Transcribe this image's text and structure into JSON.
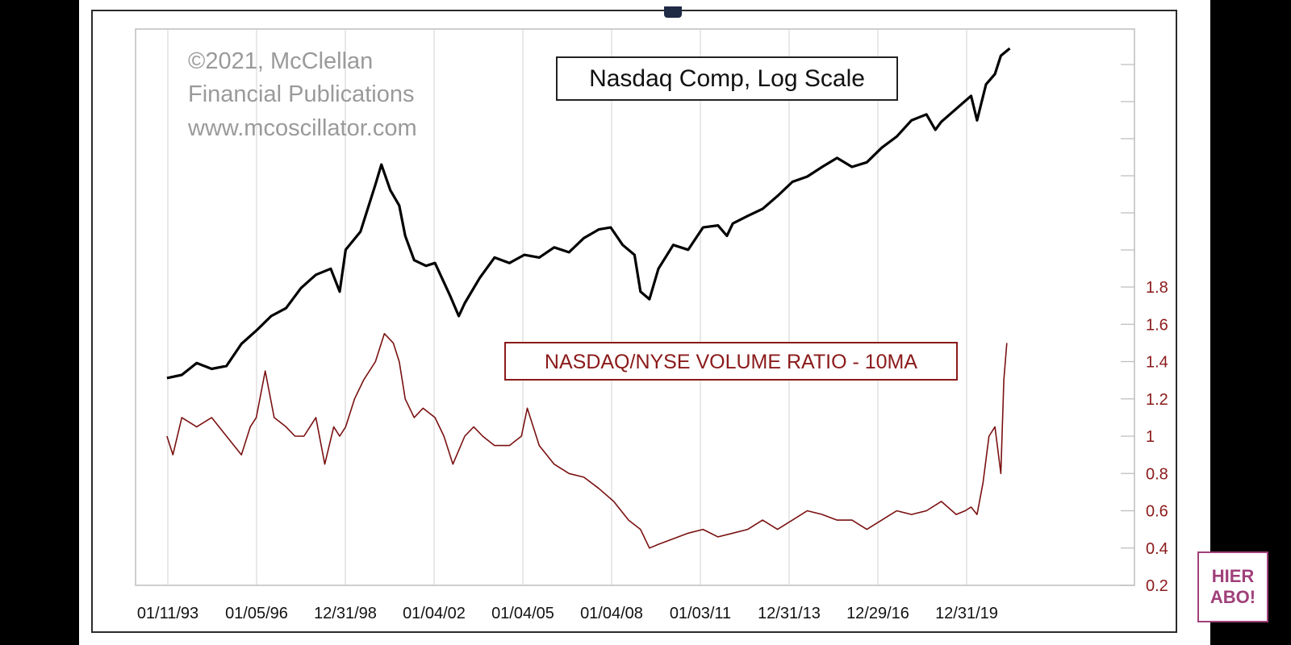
{
  "copyright": {
    "line1": "©2021, McClellan",
    "line2": "Financial Publications",
    "line3": "www.mcoscillator.com"
  },
  "badge": {
    "line1": "HIER",
    "line2": "ABO!"
  },
  "colors": {
    "nasdaq_line": "#000000",
    "ratio_line": "#7a1111",
    "right_axis_text": "#8b1a1a",
    "watermark_text": "#9a9a9a",
    "grid": "#d9d9d9",
    "badge": "#a0407a",
    "background": "#000000"
  },
  "chart_data": {
    "type": "line",
    "title": "",
    "xlabel": "",
    "ylabel": "",
    "grid": "vertical",
    "x_ticks": [
      "01/11/93",
      "01/05/96",
      "12/31/98",
      "01/04/02",
      "01/04/05",
      "01/04/08",
      "01/03/11",
      "12/31/13",
      "12/29/16",
      "12/31/19"
    ],
    "series": [
      {
        "name": "Nasdaq Comp, Log Scale",
        "axis": "unlabeled-log",
        "x": [
          1993.0,
          1993.5,
          1994.0,
          1994.5,
          1995.0,
          1995.5,
          1996.0,
          1996.5,
          1997.0,
          1997.5,
          1998.0,
          1998.5,
          1998.8,
          1999.0,
          1999.5,
          2000.0,
          2000.2,
          2000.5,
          2000.8,
          2001.0,
          2001.3,
          2001.7,
          2002.0,
          2002.5,
          2002.8,
          2003.0,
          2003.5,
          2004.0,
          2004.5,
          2005.0,
          2005.5,
          2006.0,
          2006.5,
          2007.0,
          2007.5,
          2007.9,
          2008.3,
          2008.7,
          2008.9,
          2009.2,
          2009.5,
          2010.0,
          2010.5,
          2011.0,
          2011.5,
          2011.8,
          2012.0,
          2012.5,
          2013.0,
          2013.5,
          2014.0,
          2014.5,
          2015.0,
          2015.5,
          2016.0,
          2016.5,
          2017.0,
          2017.5,
          2018.0,
          2018.5,
          2018.8,
          2019.0,
          2019.5,
          2020.0,
          2020.2,
          2020.5,
          2020.8,
          2021.0,
          2021.3
        ],
        "values": [
          680,
          700,
          780,
          740,
          760,
          930,
          1050,
          1200,
          1290,
          1550,
          1750,
          1850,
          1500,
          2200,
          2600,
          4000,
          4800,
          3800,
          3300,
          2500,
          2000,
          1900,
          1950,
          1450,
          1200,
          1350,
          1700,
          2050,
          1950,
          2100,
          2050,
          2250,
          2150,
          2450,
          2650,
          2700,
          2300,
          2100,
          1500,
          1400,
          1850,
          2300,
          2200,
          2700,
          2750,
          2500,
          2800,
          3000,
          3200,
          3600,
          4100,
          4300,
          4700,
          5100,
          4700,
          4900,
          5600,
          6200,
          7200,
          7600,
          6600,
          7100,
          8000,
          9000,
          7200,
          10000,
          11000,
          13000,
          13900
        ]
      },
      {
        "name": "NASDAQ/NYSE VOLUME RATIO - 10MA",
        "axis": "right",
        "x": [
          1993.0,
          1993.2,
          1993.5,
          1994.0,
          1994.5,
          1995.0,
          1995.5,
          1995.8,
          1996.0,
          1996.3,
          1996.6,
          1997.0,
          1997.3,
          1997.6,
          1998.0,
          1998.3,
          1998.6,
          1998.8,
          1999.0,
          1999.3,
          1999.6,
          2000.0,
          2000.3,
          2000.6,
          2000.8,
          2001.0,
          2001.3,
          2001.6,
          2002.0,
          2002.3,
          2002.6,
          2003.0,
          2003.3,
          2003.6,
          2004.0,
          2004.5,
          2004.9,
          2005.1,
          2005.5,
          2006.0,
          2006.5,
          2007.0,
          2007.5,
          2008.0,
          2008.5,
          2008.9,
          2009.2,
          2009.5,
          2010.0,
          2010.5,
          2011.0,
          2011.5,
          2012.0,
          2012.5,
          2013.0,
          2013.5,
          2014.0,
          2014.5,
          2015.0,
          2015.5,
          2016.0,
          2016.5,
          2017.0,
          2017.5,
          2018.0,
          2018.5,
          2019.0,
          2019.5,
          2019.8,
          2020.0,
          2020.2,
          2020.4,
          2020.6,
          2020.8,
          2021.0,
          2021.1,
          2021.2
        ],
        "values": [
          1.0,
          0.9,
          1.1,
          1.05,
          1.1,
          1.0,
          0.9,
          1.05,
          1.1,
          1.35,
          1.1,
          1.05,
          1.0,
          1.0,
          1.1,
          0.85,
          1.05,
          1.0,
          1.05,
          1.2,
          1.3,
          1.4,
          1.55,
          1.5,
          1.4,
          1.2,
          1.1,
          1.15,
          1.1,
          1.0,
          0.85,
          1.0,
          1.05,
          1.0,
          0.95,
          0.95,
          1.0,
          1.15,
          0.95,
          0.85,
          0.8,
          0.78,
          0.72,
          0.65,
          0.55,
          0.5,
          0.4,
          0.42,
          0.45,
          0.48,
          0.5,
          0.46,
          0.48,
          0.5,
          0.55,
          0.5,
          0.55,
          0.6,
          0.58,
          0.55,
          0.55,
          0.5,
          0.55,
          0.6,
          0.58,
          0.6,
          0.65,
          0.58,
          0.6,
          0.62,
          0.58,
          0.75,
          1.0,
          1.05,
          0.8,
          1.3,
          1.5
        ]
      }
    ],
    "right_axis": {
      "ticks": [
        0.2,
        0.4,
        0.6,
        0.8,
        1,
        1.2,
        1.4,
        1.6,
        1.8
      ],
      "ylim": [
        0.2,
        1.8
      ]
    },
    "annotations": [
      "Nasdaq Comp, Log Scale",
      "NASDAQ/NYSE VOLUME RATIO - 10MA"
    ]
  }
}
